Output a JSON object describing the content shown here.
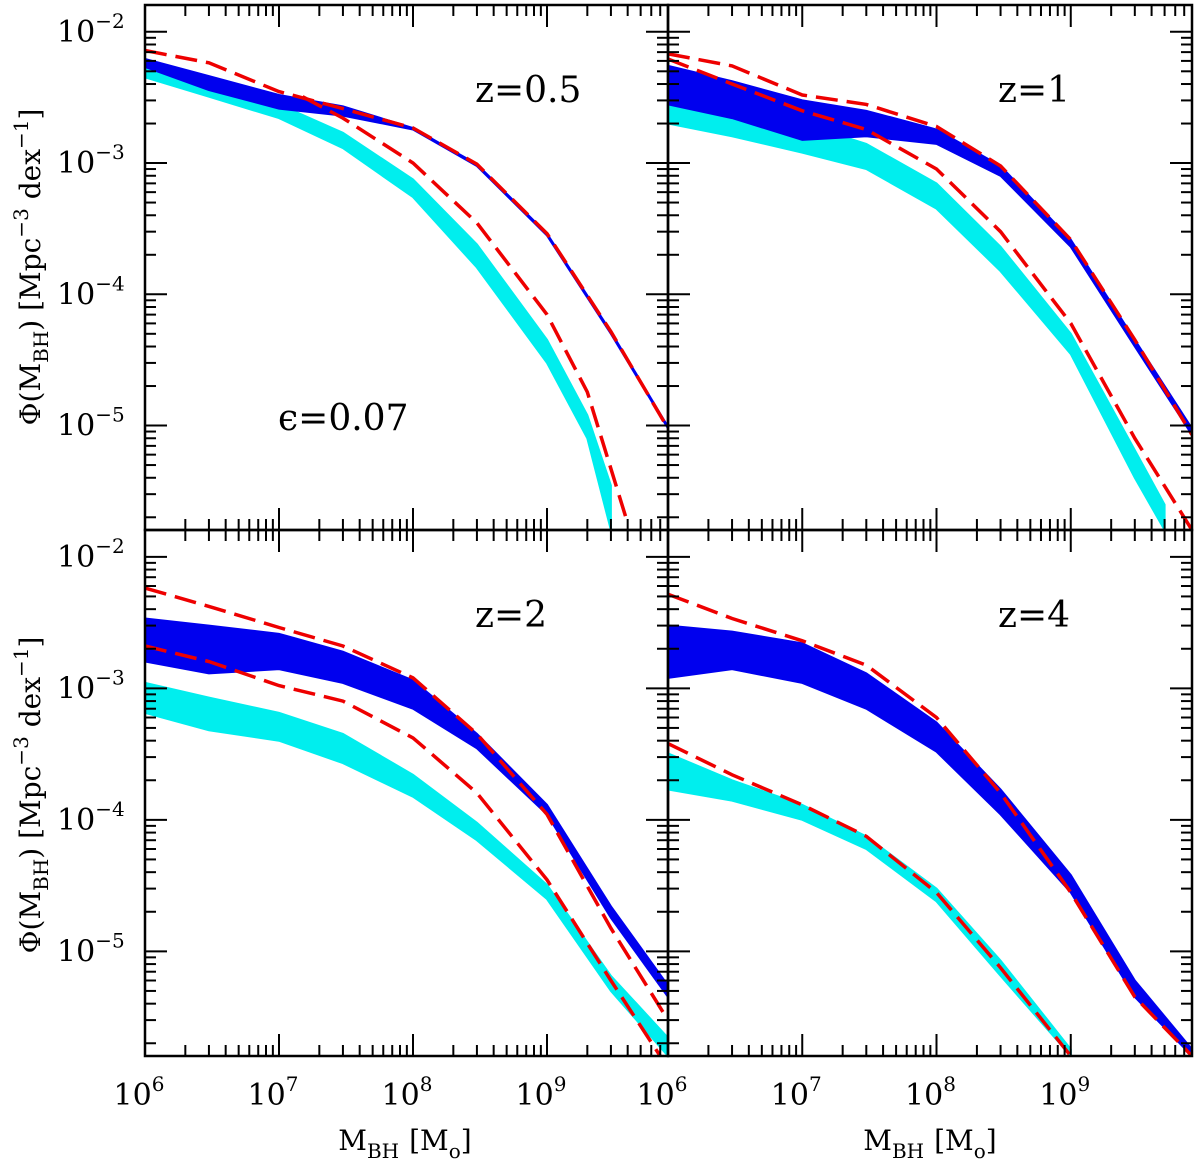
{
  "chart_data": {
    "type": "area",
    "xlabel": "M_BH [M_o]",
    "xlabel_main": "M",
    "xlabel_sub": "BH",
    "xlabel_unit": "[M",
    "xlabel_unit_sub": "o",
    "xlabel_unit_end": "]",
    "ylabel_main": "Φ(M",
    "ylabel_sub": "BH",
    "ylabel_mid": ")  [Mpc",
    "ylabel_sup1": "−3",
    "ylabel_dex": " dex",
    "ylabel_sup2": "−1",
    "ylabel_end": "]",
    "x_scale": "log",
    "y_scale": "log",
    "xlim": [
      1000000.0,
      8000000000.0
    ],
    "ylim": [
      1.6e-06,
      0.016
    ],
    "x_ticks": [
      {
        "base": "10",
        "exp": "6"
      },
      {
        "base": "10",
        "exp": "7"
      },
      {
        "base": "10",
        "exp": "8"
      },
      {
        "base": "10",
        "exp": "9"
      }
    ],
    "y_ticks": [
      {
        "base": "10",
        "exp": "−2"
      },
      {
        "base": "10",
        "exp": "−3"
      },
      {
        "base": "10",
        "exp": "−4"
      },
      {
        "base": "10",
        "exp": "−5"
      }
    ],
    "colors": {
      "dark_band": "#0000ee",
      "light_band": "#00eeee",
      "model_line": "#ee0000"
    },
    "panels": [
      {
        "label": "z=0.5",
        "note": "ϵ=0.07",
        "bands": [
          {
            "name": "dark band",
            "x": [
              1000000.0,
              3000000.0,
              10000000.0,
              30000000.0,
              100000000.0,
              300000000.0,
              1000000000.0,
              3000000000.0,
              8000000000.0
            ],
            "lower": [
              0.0054,
              0.0036,
              0.0026,
              0.0023,
              0.0018,
              0.00095,
              0.00028,
              5e-05,
              9.5e-06
            ],
            "upper": [
              0.0062,
              0.0046,
              0.0033,
              0.0027,
              0.00185,
              0.00098,
              0.00029,
              5.2e-05,
              9.8e-06
            ]
          },
          {
            "name": "light band",
            "x": [
              1000000.0,
              3000000.0,
              10000000.0,
              30000000.0,
              100000000.0,
              300000000.0,
              1000000000.0,
              2000000000.0,
              3000000000.0
            ],
            "lower": [
              0.0045,
              0.0032,
              0.0022,
              0.0013,
              0.00055,
              0.00016,
              3e-05,
              8e-06,
              1.6e-06
            ],
            "upper": [
              0.0052,
              0.0037,
              0.0028,
              0.0017,
              0.00075,
              0.00024,
              4.5e-05,
              1.2e-05,
              3.5e-06
            ]
          }
        ],
        "lines": [
          {
            "name": "upper dashed",
            "x": [
              1000000.0,
              3000000.0,
              10000000.0,
              30000000.0,
              100000000.0,
              300000000.0,
              1000000000.0,
              3000000000.0,
              8000000000.0
            ],
            "y": [
              0.0072,
              0.0058,
              0.0035,
              0.0026,
              0.00185,
              0.00098,
              0.00029,
              5.2e-05,
              9.5e-06
            ]
          },
          {
            "name": "lower dashed",
            "x": [
              15000000.0,
              30000000.0,
              100000000.0,
              300000000.0,
              1000000000.0,
              2000000000.0,
              4000000000.0
            ],
            "y": [
              0.0032,
              0.0022,
              0.001,
              0.00035,
              7e-05,
              1.8e-05,
              1.8e-06
            ]
          }
        ]
      },
      {
        "label": "z=1",
        "note": "",
        "bands": [
          {
            "name": "dark band",
            "x": [
              1000000.0,
              3000000.0,
              10000000.0,
              30000000.0,
              100000000.0,
              300000000.0,
              1000000000.0,
              3000000000.0,
              8000000000.0
            ],
            "lower": [
              0.0028,
              0.0022,
              0.0015,
              0.0016,
              0.0014,
              0.0008,
              0.00023,
              4e-05,
              8.5e-06
            ],
            "upper": [
              0.0055,
              0.0042,
              0.003,
              0.0025,
              0.0018,
              0.00095,
              0.00026,
              4.5e-05,
              9.5e-06
            ]
          },
          {
            "name": "light band",
            "x": [
              1000000.0,
              3000000.0,
              10000000.0,
              30000000.0,
              100000000.0,
              300000000.0,
              1000000000.0,
              3000000000.0,
              5000000000.0
            ],
            "lower": [
              0.002,
              0.0016,
              0.0012,
              0.0009,
              0.00045,
              0.00015,
              3.5e-05,
              4e-06,
              1.6e-06
            ],
            "upper": [
              0.0032,
              0.0027,
              0.002,
              0.0014,
              0.0007,
              0.00023,
              5e-05,
              6.5e-06,
              2.5e-06
            ]
          }
        ],
        "lines": [
          {
            "name": "upper dashed",
            "x": [
              1000000.0,
              3000000.0,
              10000000.0,
              30000000.0,
              100000000.0,
              300000000.0,
              1000000000.0,
              3000000000.0,
              8000000000.0
            ],
            "y": [
              0.0068,
              0.0055,
              0.0033,
              0.0028,
              0.0019,
              0.00095,
              0.00026,
              4.5e-05,
              8.5e-06
            ]
          },
          {
            "name": "lower dashed",
            "x": [
              1000000.0,
              3000000.0,
              10000000.0,
              30000000.0,
              100000000.0,
              300000000.0,
              1000000000.0,
              3000000000.0,
              8000000000.0
            ],
            "y": [
              0.0062,
              0.004,
              0.0025,
              0.0018,
              0.0009,
              0.0003,
              6e-05,
              8e-06,
              1.6e-06
            ]
          }
        ]
      },
      {
        "label": "z=2",
        "note": "",
        "bands": [
          {
            "name": "dark band",
            "x": [
              1000000.0,
              3000000.0,
              10000000.0,
              30000000.0,
              100000000.0,
              300000000.0,
              1000000000.0,
              3000000000.0,
              8000000000.0
            ],
            "lower": [
              0.0016,
              0.0013,
              0.0014,
              0.0011,
              0.0007,
              0.00035,
              0.00011,
              1.8e-05,
              4.5e-06
            ],
            "upper": [
              0.0034,
              0.003,
              0.0026,
              0.0019,
              0.00115,
              0.00045,
              0.00013,
              2.2e-05,
              5.5e-06
            ]
          },
          {
            "name": "light band",
            "x": [
              1000000.0,
              3000000.0,
              10000000.0,
              30000000.0,
              100000000.0,
              300000000.0,
              1000000000.0,
              3000000000.0,
              8000000000.0
            ],
            "lower": [
              0.00065,
              0.00048,
              0.0004,
              0.00027,
              0.00015,
              7e-05,
              2.5e-05,
              5e-06,
              1.6e-06
            ],
            "upper": [
              0.0011,
              0.00085,
              0.00065,
              0.00045,
              0.00022,
              9.5e-05,
              3.2e-05,
              6.5e-06,
              2.2e-06
            ]
          }
        ],
        "lines": [
          {
            "name": "upper dashed",
            "x": [
              1000000.0,
              3000000.0,
              10000000.0,
              30000000.0,
              100000000.0,
              300000000.0,
              1000000000.0,
              3000000000.0,
              8000000000.0
            ],
            "y": [
              0.0058,
              0.0042,
              0.0029,
              0.0021,
              0.0012,
              0.00045,
              0.00011,
              1.5e-05,
              3e-06
            ]
          },
          {
            "name": "lower dashed",
            "x": [
              1000000.0,
              3000000.0,
              10000000.0,
              30000000.0,
              100000000.0,
              300000000.0,
              1000000000.0,
              3000000000.0,
              7000000000.0
            ],
            "y": [
              0.0021,
              0.0016,
              0.00105,
              0.0008,
              0.00042,
              0.00016,
              3.5e-05,
              6e-06,
              1.6e-06
            ]
          }
        ]
      },
      {
        "label": "z=4",
        "note": "",
        "bands": [
          {
            "name": "dark band",
            "x": [
              1000000.0,
              3000000.0,
              10000000.0,
              30000000.0,
              100000000.0,
              300000000.0,
              1000000000.0,
              3000000000.0,
              8000000000.0
            ],
            "lower": [
              0.0012,
              0.0014,
              0.0011,
              0.0007,
              0.00033,
              0.00011,
              2.8e-05,
              4.5e-06,
              1.6e-06
            ],
            "upper": [
              0.003,
              0.0027,
              0.0022,
              0.0013,
              0.00055,
              0.00017,
              3.8e-05,
              6e-06,
              1.8e-06
            ]
          },
          {
            "name": "light band",
            "x": [
              1000000.0,
              3000000.0,
              10000000.0,
              30000000.0,
              100000000.0,
              300000000.0,
              1000000000.0
            ],
            "lower": [
              0.00017,
              0.00014,
              0.0001,
              6e-05,
              2.4e-05,
              6.5e-06,
              1.6e-06
            ],
            "upper": [
              0.00032,
              0.0002,
              0.00013,
              7.5e-05,
              3e-05,
              8.5e-06,
              1.8e-06
            ]
          }
        ],
        "lines": [
          {
            "name": "upper dashed",
            "x": [
              1000000.0,
              3000000.0,
              10000000.0,
              30000000.0,
              100000000.0,
              300000000.0,
              1000000000.0,
              3000000000.0,
              8000000000.0
            ],
            "y": [
              0.0052,
              0.0034,
              0.0023,
              0.0015,
              0.0006,
              0.00016,
              2.8e-05,
              4.5e-06,
              1.6e-06
            ]
          },
          {
            "name": "lower dashed",
            "x": [
              1000000.0,
              3000000.0,
              10000000.0,
              30000000.0,
              100000000.0,
              300000000.0,
              1000000000.0
            ],
            "y": [
              0.00038,
              0.00022,
              0.00013,
              7.5e-05,
              2.8e-05,
              7.5e-06,
              1.6e-06
            ]
          }
        ]
      }
    ]
  }
}
